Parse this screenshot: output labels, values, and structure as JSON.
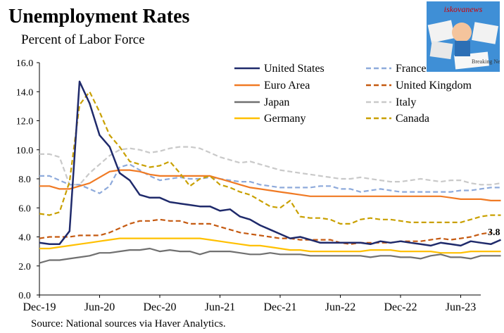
{
  "header": {
    "title": "Unemployment Rates",
    "subtitle": "Percent of Labor Force"
  },
  "footer": {
    "source": "Source: National sources via Haver Analytics."
  },
  "logo": {
    "text": "iskovanews",
    "inner_text": "Breaking News",
    "icon": "newspaper-collage-logo"
  },
  "chart_data": {
    "type": "line",
    "title": "Unemployment Rates",
    "subtitle": "Percent of Labor Force",
    "xlabel": "",
    "ylabel": "",
    "x_ticks": [
      "Dec-19",
      "Jun-20",
      "Dec-20",
      "Jun-21",
      "Dec-21",
      "Jun-22",
      "Dec-22",
      "Jun-23"
    ],
    "x_start": "Dec-19",
    "x_end": "Aug-23",
    "ylim": [
      0,
      16
    ],
    "y_ticks": [
      "0.0",
      "2.0",
      "4.0",
      "6.0",
      "8.0",
      "10.0",
      "12.0",
      "14.0",
      "16.0"
    ],
    "grid": false,
    "legend_position": "top-right",
    "annotation": "3.8",
    "series": [
      {
        "name": "United States",
        "color": "#1f2a6b",
        "dash": "solid",
        "values": [
          3.6,
          3.5,
          3.5,
          4.4,
          14.7,
          13.2,
          11.0,
          10.2,
          8.4,
          7.9,
          6.9,
          6.7,
          6.7,
          6.4,
          6.3,
          6.2,
          6.1,
          6.1,
          5.8,
          5.9,
          5.4,
          5.2,
          4.8,
          4.5,
          4.2,
          3.9,
          4.0,
          3.8,
          3.6,
          3.6,
          3.6,
          3.6,
          3.6,
          3.5,
          3.7,
          3.6,
          3.7,
          3.6,
          3.5,
          3.4,
          3.6,
          3.5,
          3.4,
          3.7,
          3.6,
          3.5,
          3.8
        ]
      },
      {
        "name": "Euro Area",
        "color": "#f07a24",
        "dash": "solid",
        "values": [
          7.5,
          7.5,
          7.3,
          7.3,
          7.5,
          7.7,
          8.1,
          8.5,
          8.6,
          8.6,
          8.5,
          8.3,
          8.2,
          8.2,
          8.2,
          8.2,
          8.2,
          8.2,
          8.0,
          7.8,
          7.6,
          7.4,
          7.3,
          7.2,
          7.1,
          7.0,
          6.9,
          6.8,
          6.8,
          6.8,
          6.8,
          6.8,
          6.8,
          6.8,
          6.8,
          6.8,
          6.8,
          6.8,
          6.8,
          6.8,
          6.8,
          6.7,
          6.6,
          6.6,
          6.6,
          6.5,
          6.5
        ]
      },
      {
        "name": "Japan",
        "color": "#707070",
        "dash": "solid",
        "values": [
          2.2,
          2.4,
          2.4,
          2.5,
          2.6,
          2.7,
          2.9,
          2.9,
          3.0,
          3.1,
          3.1,
          3.2,
          3.0,
          3.1,
          3.0,
          3.0,
          2.8,
          3.0,
          3.0,
          3.0,
          2.9,
          2.8,
          2.8,
          2.9,
          2.8,
          2.8,
          2.8,
          2.7,
          2.7,
          2.7,
          2.7,
          2.7,
          2.7,
          2.6,
          2.7,
          2.7,
          2.6,
          2.6,
          2.5,
          2.7,
          2.8,
          2.6,
          2.6,
          2.5,
          2.7,
          2.7,
          2.7
        ]
      },
      {
        "name": "Germany",
        "color": "#ffc000",
        "dash": "solid",
        "values": [
          3.2,
          3.2,
          3.3,
          3.4,
          3.5,
          3.6,
          3.7,
          3.8,
          3.9,
          3.9,
          3.9,
          3.9,
          3.9,
          3.9,
          3.9,
          3.9,
          3.9,
          3.8,
          3.7,
          3.6,
          3.5,
          3.4,
          3.4,
          3.3,
          3.2,
          3.1,
          3.1,
          3.0,
          3.0,
          3.0,
          3.0,
          3.0,
          3.0,
          3.1,
          3.1,
          3.1,
          3.0,
          3.0,
          3.0,
          3.0,
          2.9,
          2.9,
          2.9,
          3.0,
          3.0,
          3.0,
          3.0
        ]
      },
      {
        "name": "France",
        "color": "#8eaadb",
        "dash": "dashed",
        "values": [
          8.2,
          8.2,
          7.9,
          7.6,
          7.6,
          7.3,
          7.0,
          7.5,
          8.8,
          9.0,
          8.6,
          8.2,
          7.9,
          8.0,
          8.1,
          8.0,
          8.0,
          8.1,
          8.0,
          7.9,
          7.8,
          7.8,
          7.6,
          7.5,
          7.4,
          7.4,
          7.4,
          7.4,
          7.5,
          7.5,
          7.3,
          7.3,
          7.1,
          7.2,
          7.3,
          7.2,
          7.1,
          7.1,
          7.1,
          7.1,
          7.1,
          7.1,
          7.2,
          7.2,
          7.3,
          7.4,
          7.4
        ]
      },
      {
        "name": "United Kingdom",
        "color": "#c55a11",
        "dash": "dashed",
        "values": [
          3.9,
          4.0,
          4.0,
          4.0,
          4.1,
          4.1,
          4.1,
          4.3,
          4.6,
          4.9,
          5.1,
          5.1,
          5.2,
          5.1,
          5.1,
          4.9,
          4.9,
          4.9,
          4.7,
          4.5,
          4.3,
          4.2,
          4.1,
          4.0,
          3.9,
          3.9,
          3.8,
          3.8,
          3.8,
          3.8,
          3.6,
          3.5,
          3.6,
          3.6,
          3.6,
          3.6,
          3.7,
          3.7,
          3.7,
          3.8,
          3.9,
          3.8,
          3.9,
          4.0,
          4.2,
          4.3
        ]
      },
      {
        "name": "Italy",
        "color": "#c9c9c9",
        "dash": "dashed",
        "values": [
          9.7,
          9.7,
          9.5,
          7.6,
          7.6,
          8.4,
          9.0,
          9.6,
          10.0,
          10.1,
          10.0,
          9.8,
          9.9,
          10.1,
          10.2,
          10.2,
          10.1,
          9.8,
          9.5,
          9.3,
          9.1,
          9.2,
          9.0,
          8.8,
          8.6,
          8.5,
          8.4,
          8.3,
          8.2,
          8.1,
          8.0,
          8.0,
          8.1,
          8.0,
          7.9,
          7.8,
          7.8,
          7.9,
          8.0,
          7.9,
          7.8,
          7.9,
          7.9,
          7.7,
          7.6,
          7.6,
          7.7
        ]
      },
      {
        "name": "Canada",
        "color": "#c9a000",
        "dash": "dashed",
        "values": [
          5.6,
          5.5,
          5.7,
          7.8,
          13.1,
          14.0,
          12.6,
          11.0,
          10.2,
          9.2,
          9.0,
          8.8,
          8.9,
          9.2,
          8.4,
          7.5,
          8.0,
          8.2,
          7.6,
          7.4,
          7.1,
          6.9,
          6.5,
          6.1,
          6.0,
          6.5,
          5.4,
          5.3,
          5.3,
          5.2,
          4.9,
          4.9,
          5.2,
          5.3,
          5.2,
          5.2,
          5.1,
          5.0,
          5.0,
          5.0,
          5.0,
          5.0,
          5.0,
          5.2,
          5.4,
          5.5,
          5.5
        ]
      }
    ]
  }
}
